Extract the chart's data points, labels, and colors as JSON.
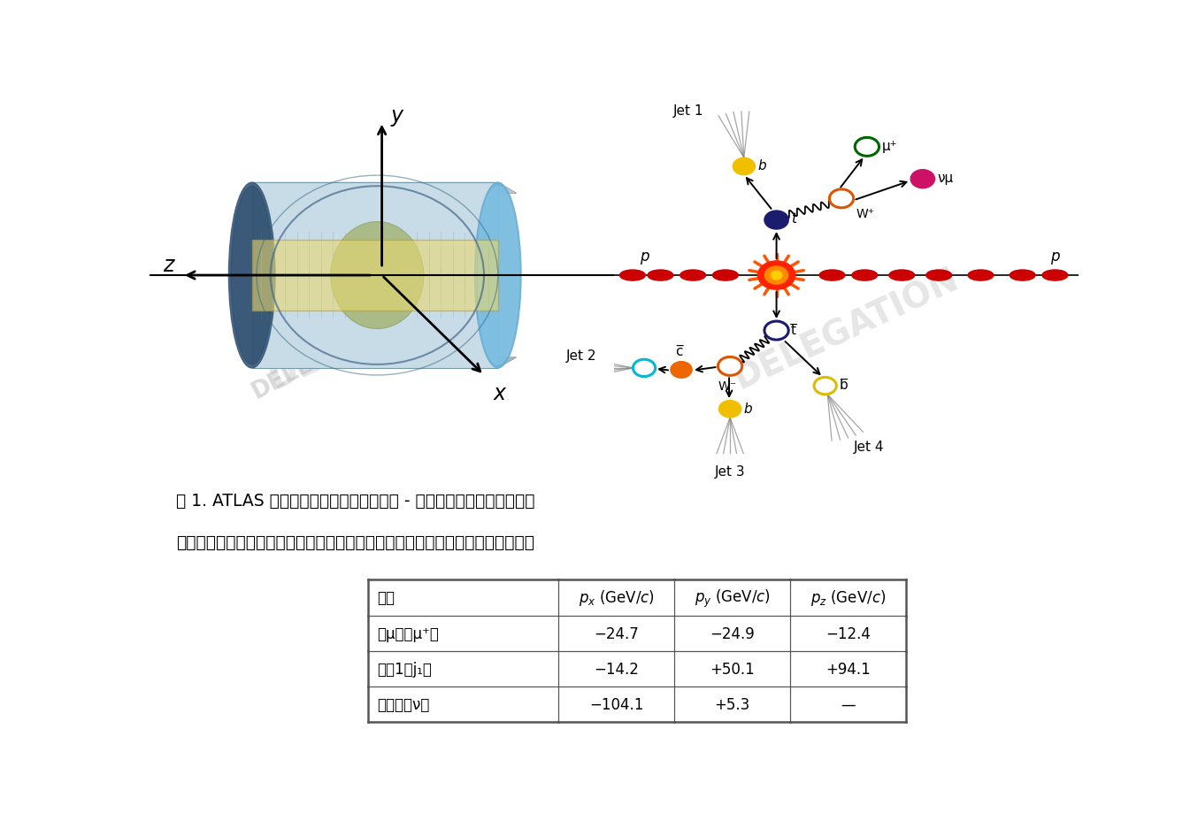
{
  "caption_line1": "图 1. ATLAS 探测器的坐标系（左）和质子 - 质子碰撞（右）的示意图。",
  "caption_line2": "来自顶夸克衰变的三个终态粒子的动量，包括中微子的，其各部分分量写在下面。",
  "bg_color": "#ffffff",
  "table_col0_header": "粒子",
  "table_col1_header": "$p_x$ (GeV/$c$)",
  "table_col2_header": "$p_y$ (GeV/$c$)",
  "table_col3_header": "$p_z$ (GeV/$c$)",
  "row1_col0": "反μ子（μ⁺）",
  "row1_col1": "−24.7",
  "row1_col2": "−24.9",
  "row1_col3": "−12.4",
  "row2_col0": "喷注1（j₁）",
  "row2_col1": "−14.2",
  "row2_col2": "+50.1",
  "row2_col3": "+94.1",
  "row3_col0": "中微子（ν）",
  "row3_col1": "−104.1",
  "row3_col2": "+5.3",
  "row3_col3": "—"
}
